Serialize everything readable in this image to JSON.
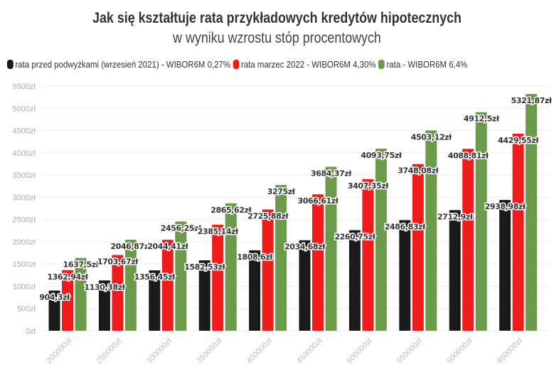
{
  "chart_data": {
    "type": "bar",
    "title": "Jak się kształtuje rata przykładowych kredytów hipotecznych",
    "subtitle": "w wyniku wzrostu stóp procentowych",
    "categories": [
      "200000zł",
      "250000zł",
      "300000zł",
      "350000zł",
      "400000zł",
      "450000zł",
      "500000zł",
      "550000zł",
      "600000zł",
      "650000zł"
    ],
    "series": [
      {
        "name": "rata przed podwyżkami (wrzesień 2021) - WIBOR6M 0,27%",
        "color": "#1a1a1a",
        "values": [
          904.3,
          1130.38,
          1356.45,
          1582.53,
          1808.6,
          2034.68,
          2260.75,
          2486.83,
          2712.9,
          2938.98
        ],
        "labels": [
          "904,3zł",
          "1130,38zł",
          "1356,45zł",
          "1582,53zł",
          "1808,6zł",
          "2034,68zł",
          "2260,75zł",
          "2486,83zł",
          "2712,9zł",
          "2938,98zł"
        ]
      },
      {
        "name": "rata marzec 2022 - WIBOR6M 4,30%",
        "color": "#f01b1b",
        "values": [
          1362.94,
          1703.67,
          2044.41,
          2385.14,
          2725.88,
          3066.61,
          3407.35,
          3748.08,
          4088.81,
          4429.55
        ],
        "labels": [
          "1362,94zł",
          "1703,67zł",
          "2044,41zł",
          "2385,14zł",
          "2725,88zł",
          "3066,61zł",
          "3407,35zł",
          "3748,08zł",
          "4088,81zł",
          "4429,55zł"
        ]
      },
      {
        "name": "rata - WIBOR6M 6,4%",
        "color": "#6a9a4a",
        "values": [
          1637.5,
          2046.87,
          2456.25,
          2865.62,
          3275,
          3684.37,
          4093.75,
          4503.12,
          4912.5,
          5321.87
        ],
        "labels": [
          "1637,5zł",
          "2046,87zł",
          "2456,25zł",
          "2865,62zł",
          "3275zł",
          "3684,37zł",
          "4093,75zł",
          "4503,12zł",
          "4912,5zł",
          "5321,87zł"
        ]
      }
    ],
    "yticks": [
      "0zł",
      "500zł",
      "1000zł",
      "1500zł",
      "2000zł",
      "2500zł",
      "3000zł",
      "3500zł",
      "4000zł",
      "4500zł",
      "5000zł",
      "5500zł"
    ],
    "ylim": [
      0,
      5500
    ],
    "grid": true,
    "legend": "top-left"
  }
}
